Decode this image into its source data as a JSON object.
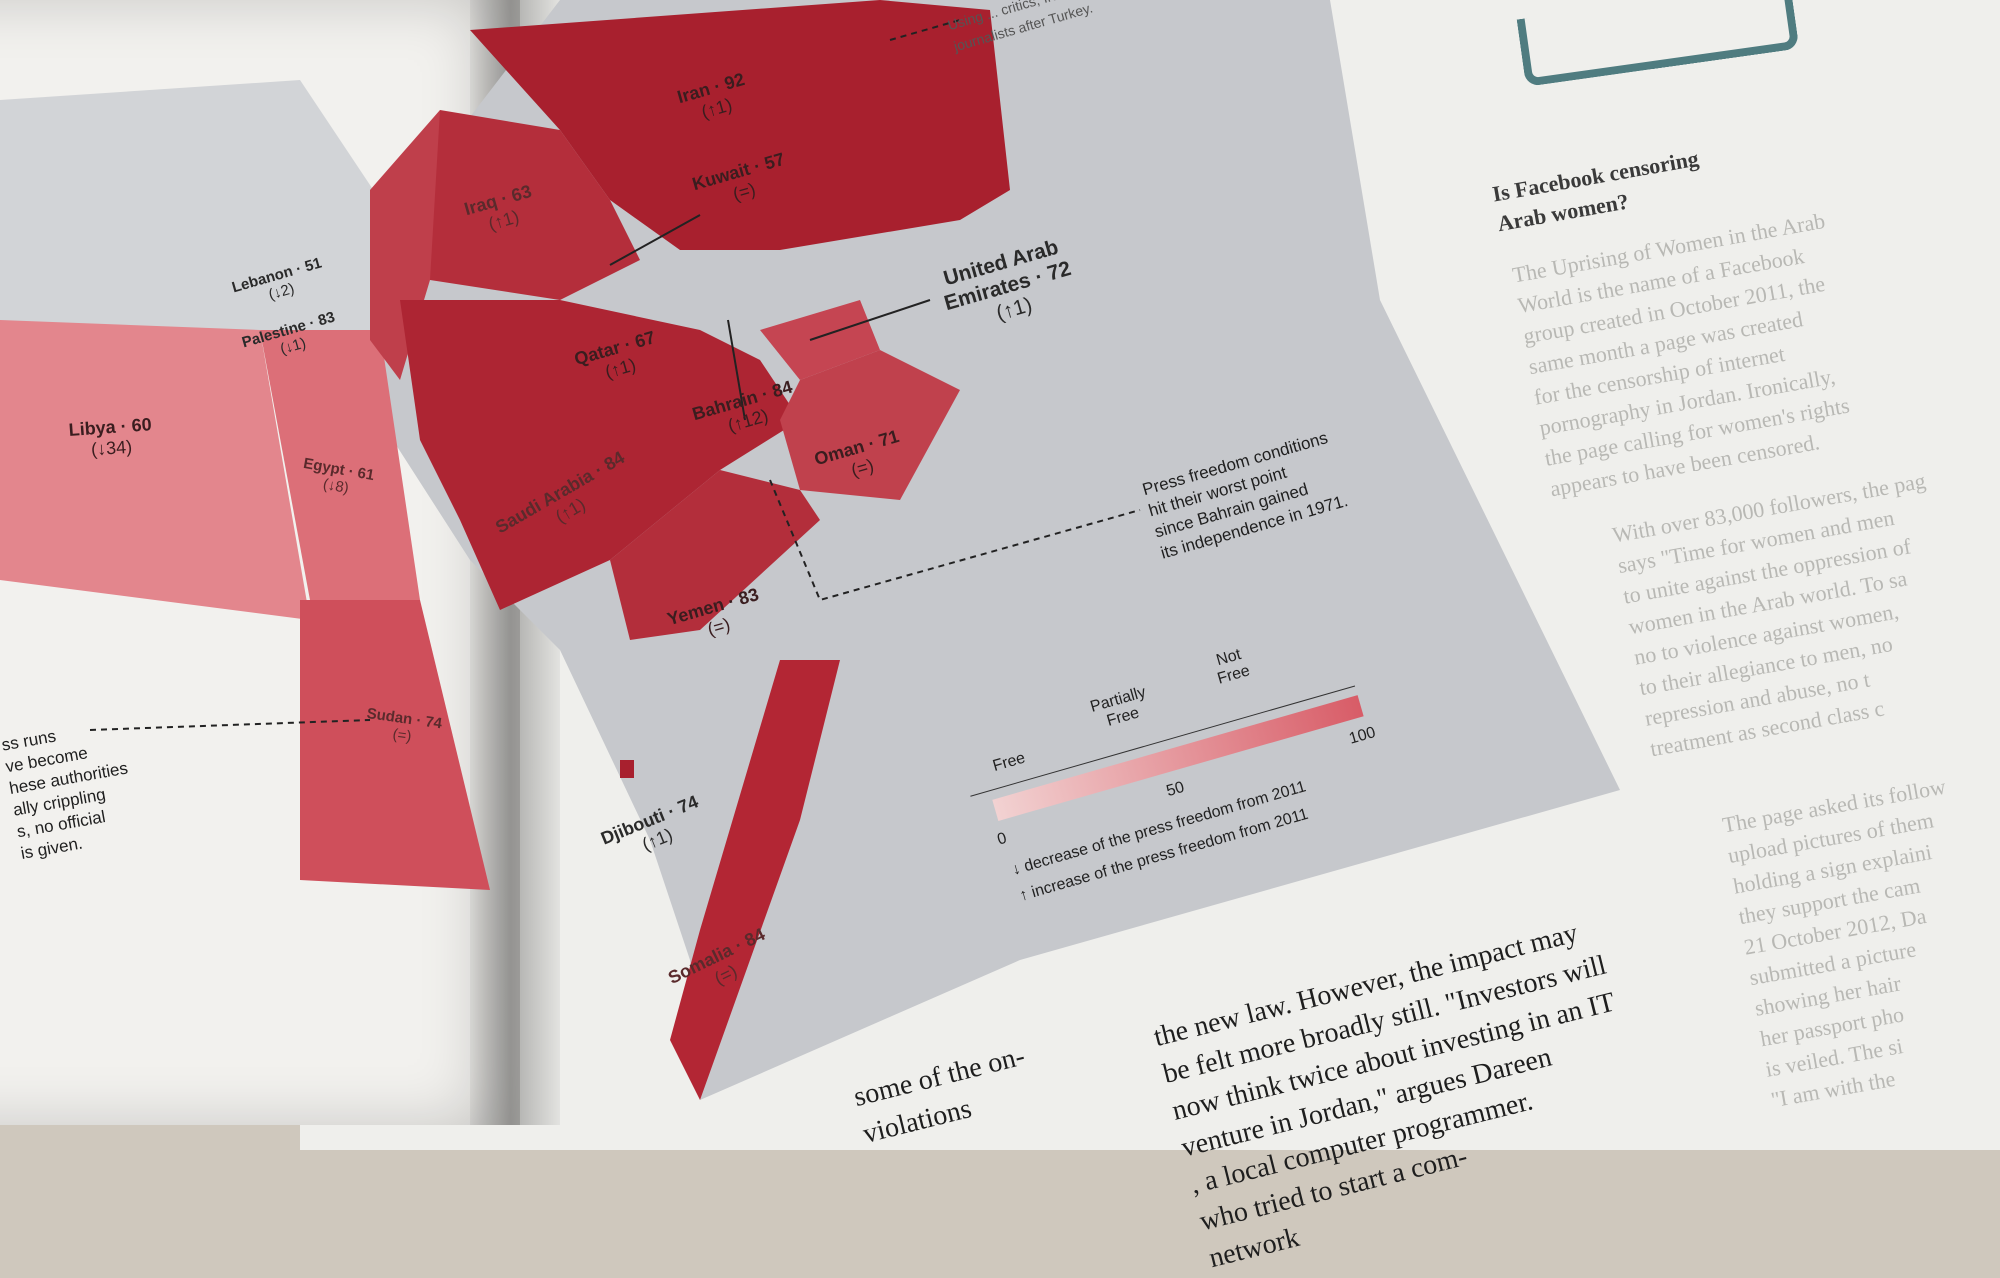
{
  "map": {
    "colors": {
      "not_free": "#a8202e",
      "mid": "#c9505c",
      "light": "#e8a9ae",
      "grey": "#c6c8cc",
      "page": "#efefec"
    },
    "countries": [
      {
        "name": "Iran",
        "score": "Iran · 92",
        "change": "(↑1)"
      },
      {
        "name": "Kuwait",
        "score": "Kuwait · 57",
        "change": "(=)"
      },
      {
        "name": "Iraq",
        "score": "Iraq · 63",
        "change": "(↑1)"
      },
      {
        "name": "Lebanon",
        "score": "Lebanon · 51",
        "change": "(↓2)"
      },
      {
        "name": "Palestine",
        "score": "Palestine · 83",
        "change": "(↓1)"
      },
      {
        "name": "Qatar",
        "score": "Qatar · 67",
        "change": "(↑1)"
      },
      {
        "name": "United Arab Emirates",
        "score_line1": "United Arab",
        "score_line2": "Emirates · 72",
        "change": "(↑1)"
      },
      {
        "name": "Bahrain",
        "score": "Bahrain · 84",
        "change": "(↑12)"
      },
      {
        "name": "Oman",
        "score": "Oman · 71",
        "change": "(=)"
      },
      {
        "name": "Saudi Arabia",
        "score": "Saudi Arabia · 84",
        "change": "(↑1)"
      },
      {
        "name": "Yemen",
        "score": "Yemen · 83",
        "change": "(=)"
      },
      {
        "name": "Libya",
        "score": "Libya · 60",
        "change": "(↓34)"
      },
      {
        "name": "Egypt",
        "score": "Egypt · 61",
        "change": "(↓8)"
      },
      {
        "name": "Sudan",
        "score": "Sudan · 74",
        "change": "(=)"
      },
      {
        "name": "Djibouti",
        "score": "Djibouti · 74",
        "change": "(↑1)"
      },
      {
        "name": "Somalia",
        "score": "Somalia · 84",
        "change": "(=)"
      }
    ]
  },
  "annotations": {
    "iran_note": "Using ... critics, Iran is the world's ... worst jailer of journalists after Turkey.",
    "bahrain_note_lines": [
      "Press freedom conditions",
      "hit their worst point",
      "since Bahrain gained",
      "its independence in 1971."
    ],
    "left_note_lines": [
      "ss runs",
      "ve become",
      "hese authorities",
      "ally crippling",
      "s, no official",
      "is given."
    ]
  },
  "legend": {
    "free": "Free",
    "partially_free_line1": "Partially",
    "partially_free_line2": "Free",
    "not_free_line1": "Not",
    "not_free_line2": "Free",
    "tick_0": "0",
    "tick_50": "50",
    "tick_100": "100",
    "decrease": "decrease of the press freedom from 2011",
    "increase": "increase of the press freedom from 2011"
  },
  "sidebar": {
    "title_line1": "Is Facebook censoring",
    "title_line2": "Arab women?",
    "para1": "The Uprising of Women in the Arab\nWorld is the name of a Facebook\ngroup created in October 2011, the\nsame month a page was created\nfor the censorship of internet\npornography in Jordan. Ironically,\nthe page calling for women's rights\nappears to have been censored.",
    "para2": "With over 83,000 followers, the pag\nsays \"Time for women and men\nto unite against the oppression of\nwomen in the Arab world. To sa\nno to violence against women,\nto their allegiance to men, no\nrepression and abuse, no t\ntreatment as second class c",
    "para3": "The page asked its follow\nupload pictures of them\nholding a sign explaini\nthey support the cam\n21 October 2012, Da\nsubmitted a picture\nshowing her hair\nher passport pho\nis veiled. The si\n\"I am with the"
  },
  "body_text": {
    "lines": "the new law. However, the impact may\nbe felt more broadly still. \"Investors will\nnow think twice about investing in an IT\nventure in Jordan,\" argues Dareen\n, a local computer programmer.\nwho tried to start a com-\nnetwork",
    "left_fragment": "some of the on-\nviolations"
  }
}
